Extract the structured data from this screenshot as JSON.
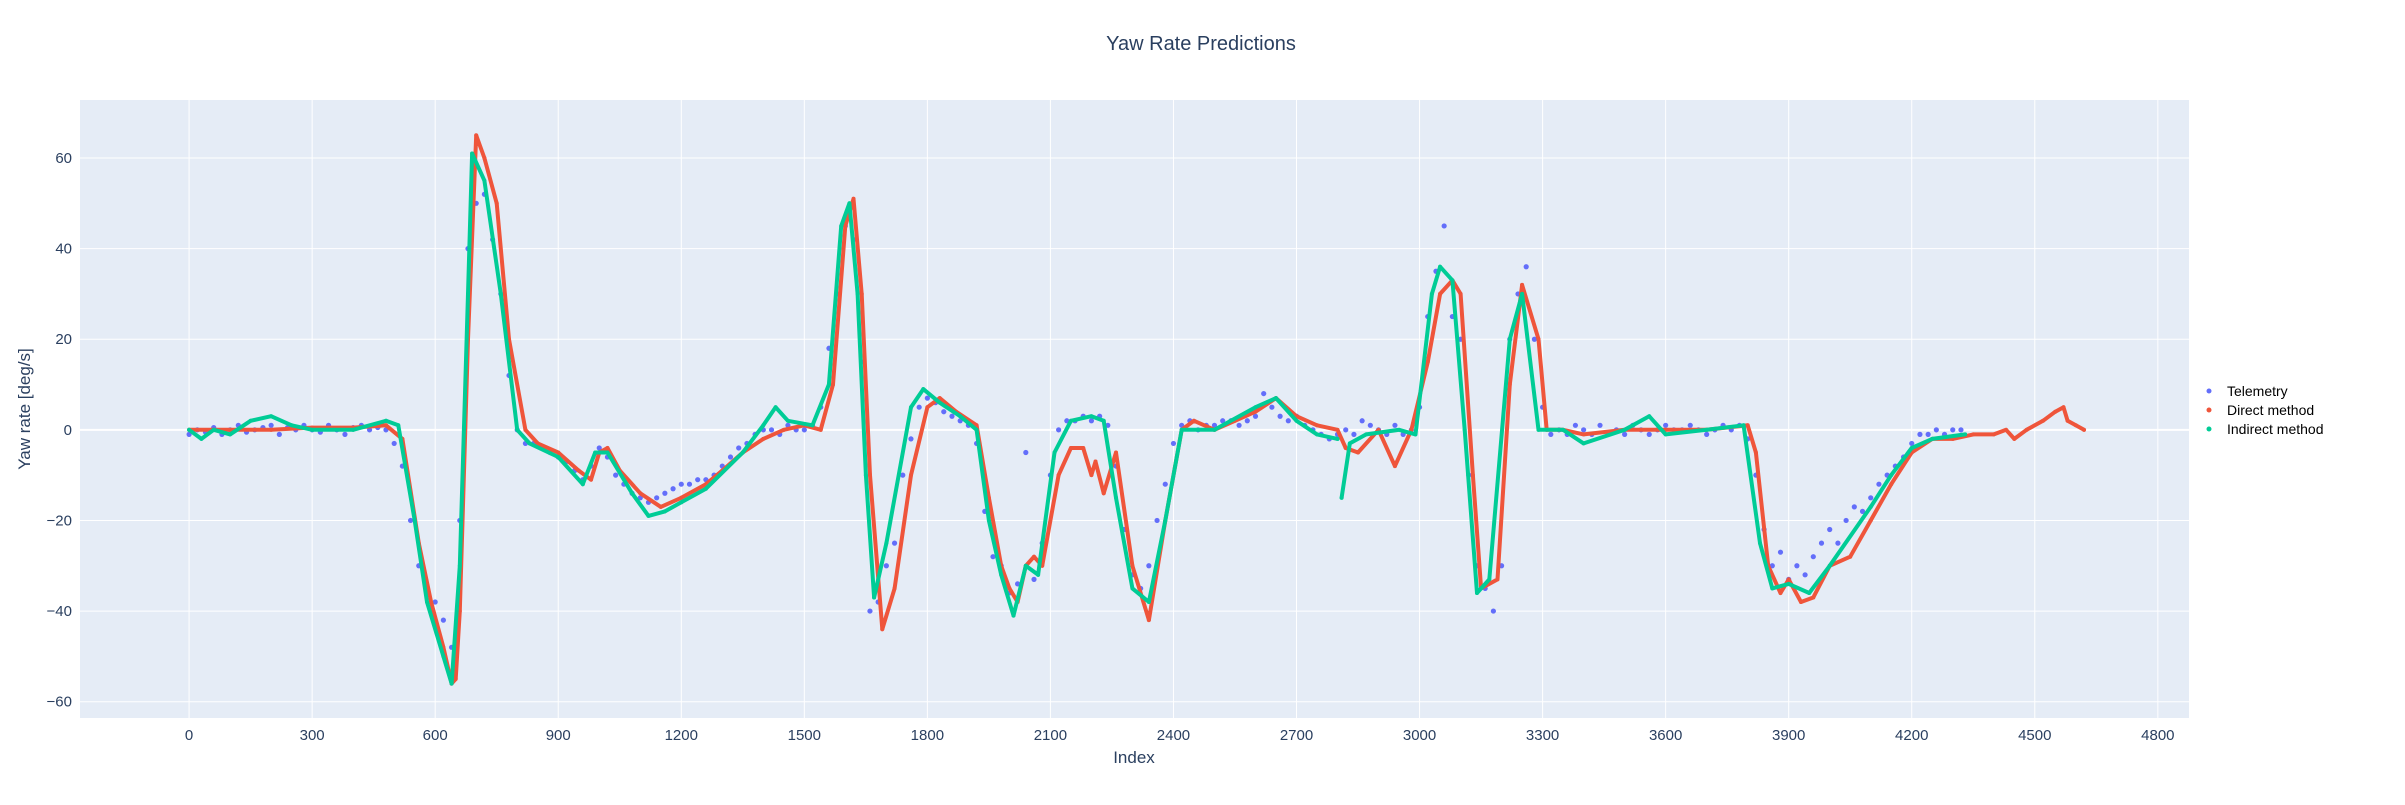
{
  "chart_data": {
    "type": "scatter",
    "title": "Yaw Rate Predictions",
    "xlabel": "Index",
    "ylabel": "Yaw rate [deg/s]",
    "xlim": [
      -266,
      4876
    ],
    "ylim": [
      -63.6,
      72.8
    ],
    "xticks": [
      0,
      300,
      600,
      900,
      1200,
      1500,
      1800,
      2100,
      2400,
      2700,
      3000,
      3300,
      3600,
      3900,
      4200,
      4500,
      4800
    ],
    "yticks": [
      -60,
      -40,
      -20,
      0,
      20,
      40,
      60
    ],
    "grid": true,
    "legend_placement": "right",
    "colors": {
      "plot_bg": "#e5ecf6",
      "grid": "#ffffff",
      "telemetry": "#636efa",
      "direct": "#ef553b",
      "indirect": "#00cc96"
    },
    "series": [
      {
        "name": "Telemetry",
        "mode": "markers",
        "x_start": 0,
        "x_step": 20,
        "y": [
          -1,
          0,
          -0.5,
          0.5,
          -1,
          0,
          1,
          -0.5,
          0,
          0.5,
          1,
          -1,
          0.5,
          0,
          1,
          0,
          -0.5,
          1,
          0,
          -1,
          0.5,
          1,
          0,
          0.5,
          0,
          -3,
          -8,
          -20,
          -30,
          -36,
          -38,
          -42,
          -48,
          -20,
          40,
          50,
          52,
          42,
          30,
          12,
          0,
          -3,
          -3,
          -4,
          -5,
          -6,
          -7,
          -9,
          -11,
          -8,
          -4,
          -6,
          -10,
          -12,
          -14,
          -15,
          -16,
          -15,
          -14,
          -13,
          -12,
          -12,
          -11,
          -11,
          -10,
          -8,
          -6,
          -4,
          -3,
          -1,
          0,
          0,
          -1,
          1,
          0,
          0,
          1,
          5,
          18,
          30,
          45,
          42,
          15,
          -40,
          -38,
          -30,
          -25,
          -10,
          -2,
          5,
          7,
          6,
          4,
          3,
          2,
          1,
          -3,
          -18,
          -28,
          -30,
          -36,
          -34,
          -5,
          -33,
          -25,
          -10,
          0,
          2,
          2,
          3,
          2,
          3,
          1,
          -8,
          -22,
          -32,
          -35,
          -30,
          -20,
          -12,
          -3,
          1,
          2,
          0,
          1,
          1,
          2,
          2,
          1,
          2,
          3,
          8,
          5,
          3,
          2,
          3,
          1,
          0,
          -1,
          -2,
          -1,
          0,
          -1,
          2,
          1,
          0,
          -1,
          1,
          -1,
          0,
          5,
          25,
          35,
          45,
          25,
          20,
          -10,
          -30,
          -35,
          -40,
          -30,
          20,
          30,
          36,
          20,
          5,
          -1,
          0,
          -1,
          1,
          0,
          -1,
          1,
          -1,
          0,
          -1,
          1,
          0,
          -1,
          0,
          1,
          0,
          0,
          1,
          0,
          -1,
          0,
          1,
          0,
          1,
          -2,
          -10,
          -22,
          -30,
          -27,
          -33,
          -30,
          -32,
          -28,
          -25,
          -22,
          -25,
          -20,
          -17,
          -18,
          -15,
          -12,
          -10,
          -8,
          -6,
          -3,
          -1,
          -1,
          0,
          -1,
          0,
          0
        ]
      },
      {
        "name": "Direct method",
        "mode": "markers",
        "x": [
          0,
          100,
          200,
          300,
          400,
          480,
          520,
          560,
          590,
          620,
          640,
          650,
          660,
          680,
          700,
          720,
          750,
          780,
          820,
          850,
          900,
          950,
          980,
          1000,
          1020,
          1050,
          1100,
          1150,
          1200,
          1260,
          1300,
          1350,
          1400,
          1450,
          1500,
          1540,
          1570,
          1600,
          1620,
          1640,
          1660,
          1690,
          1720,
          1760,
          1800,
          1830,
          1870,
          1920,
          1950,
          1980,
          2000,
          2020,
          2040,
          2060,
          2080,
          2120,
          2150,
          2180,
          2200,
          2210,
          2230,
          2260,
          2300,
          2340,
          2380,
          2420,
          2450,
          2500,
          2550,
          2600,
          2650,
          2700,
          2750,
          2800,
          2820,
          2850,
          2900,
          2940,
          2980,
          3020,
          3050,
          3080,
          3100,
          3130,
          3150,
          3190,
          3220,
          3250,
          3290,
          3310,
          3350,
          3400,
          3500,
          3600,
          3700,
          3800,
          3820,
          3850,
          3880,
          3900,
          3930,
          3960,
          4000,
          4050,
          4100,
          4150,
          4200,
          4250,
          4300,
          4350,
          4400,
          4430,
          4450,
          4480,
          4520,
          4550,
          4570,
          4580,
          4600,
          4620
        ],
        "y": [
          0,
          0,
          0,
          0.5,
          0.5,
          1,
          -2,
          -25,
          -38,
          -48,
          -56,
          -55,
          -40,
          20,
          65,
          60,
          50,
          20,
          0,
          -3,
          -5,
          -9,
          -11,
          -5,
          -4,
          -9,
          -14,
          -17,
          -15,
          -12,
          -9,
          -5,
          -2,
          0,
          1,
          0,
          10,
          45,
          51,
          30,
          -10,
          -44,
          -35,
          -10,
          5,
          7,
          4,
          1,
          -15,
          -30,
          -35,
          -38,
          -30,
          -28,
          -30,
          -10,
          -4,
          -4,
          -10,
          -7,
          -14,
          -5,
          -30,
          -42,
          -20,
          0,
          2,
          0,
          2,
          4,
          7,
          3,
          1,
          0,
          -4,
          -5,
          0,
          -8,
          0,
          15,
          30,
          33,
          30,
          -10,
          -35,
          -33,
          10,
          32,
          20,
          0,
          0,
          -1,
          0,
          0,
          0,
          1,
          -5,
          -30,
          -36,
          -33,
          -38,
          -37,
          -30,
          -28,
          -20,
          -12,
          -5,
          -2,
          -2,
          -1,
          -1,
          0,
          -2,
          0,
          2,
          4,
          5,
          2,
          1,
          0
        ]
      },
      {
        "name": "Indirect method",
        "mode": "markers",
        "x": [
          0,
          30,
          60,
          100,
          150,
          200,
          250,
          300,
          400,
          480,
          510,
          550,
          580,
          620,
          640,
          660,
          680,
          690,
          720,
          760,
          800,
          830,
          900,
          960,
          990,
          1020,
          1080,
          1120,
          1160,
          1200,
          1260,
          1350,
          1400,
          1430,
          1460,
          1520,
          1560,
          1590,
          1610,
          1630,
          1650,
          1670,
          1700,
          1760,
          1790,
          1830,
          1880,
          1920,
          1950,
          1980,
          2010,
          2040,
          2070,
          2110,
          2150,
          2200,
          2230,
          2260,
          2300,
          2340,
          2380,
          2420,
          2460,
          2500,
          2600,
          2650,
          2700,
          2750,
          2800,
          2805,
          2810,
          2830,
          2870,
          2950,
          2990,
          3030,
          3050,
          3080,
          3110,
          3140,
          3170,
          3220,
          3250,
          3290,
          3350,
          3400,
          3500,
          3560,
          3600,
          3700,
          3790,
          3830,
          3860,
          3900,
          3950,
          4000,
          4100,
          4150,
          4200,
          4250,
          4330
        ],
        "y": [
          0,
          -2,
          0,
          -1,
          2,
          3,
          1,
          0,
          0,
          2,
          1,
          -20,
          -38,
          -50,
          -56,
          -30,
          30,
          61,
          55,
          30,
          0,
          -3,
          -6,
          -12,
          -5,
          -5,
          -14,
          -19,
          -18,
          -16,
          -13,
          -5,
          1,
          5,
          2,
          1,
          10,
          45,
          50,
          30,
          -10,
          -37,
          -25,
          5,
          9,
          6,
          3,
          0,
          -20,
          -32,
          -41,
          -30,
          -32,
          -5,
          2,
          3,
          2,
          -15,
          -35,
          -38,
          -20,
          0,
          0,
          0,
          5,
          7,
          2,
          -1,
          -2,
          null,
          -15,
          -3,
          -1,
          0,
          -1,
          30,
          36,
          33,
          0,
          -36,
          -33,
          20,
          30,
          0,
          0,
          -3,
          0,
          3,
          -1,
          0,
          1,
          -25,
          -35,
          -34,
          -36,
          -30,
          -17,
          -10,
          -4,
          -2,
          -1
        ]
      }
    ]
  }
}
